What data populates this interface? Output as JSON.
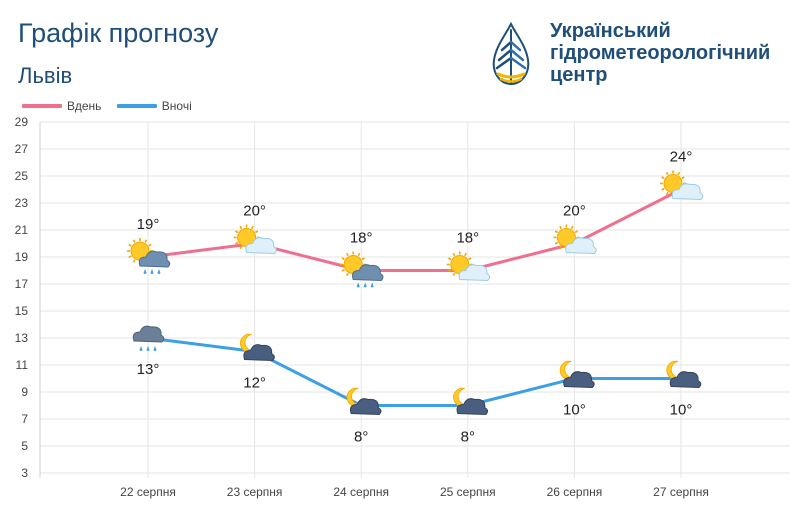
{
  "header": {
    "title": "Графік прогнозу",
    "city": "Львів",
    "org_name": "Український\nгідрометеорологічний\nцентр"
  },
  "colors": {
    "day": "#ef6f8e",
    "night": "#3ea0e4",
    "brand": "#1f4e79",
    "grid": "#e6e6e6"
  },
  "chart_data": {
    "type": "line",
    "categories": [
      "22 серпня",
      "23 серпня",
      "24 серпня",
      "25 серпня",
      "26 серпня",
      "27 серпня"
    ],
    "series": [
      {
        "name": "Вдень",
        "values": [
          19,
          20,
          18,
          18,
          20,
          24
        ],
        "labels": [
          "19°",
          "20°",
          "18°",
          "18°",
          "20°",
          "24°"
        ],
        "icons": [
          "sun-cloud-rain-icon",
          "sun-cloud-icon",
          "sun-cloud-rain-icon",
          "sun-cloud-icon",
          "sun-cloud-icon",
          "sun-cloud-icon"
        ]
      },
      {
        "name": "Вночі",
        "values": [
          13,
          12,
          8,
          8,
          10,
          10
        ],
        "labels": [
          "13°",
          "12°",
          "8°",
          "8°",
          "10°",
          "10°"
        ],
        "icons": [
          "cloud-rain-icon",
          "moon-cloud-icon",
          "moon-cloud-icon",
          "moon-cloud-icon",
          "moon-cloud-icon",
          "moon-cloud-icon"
        ]
      }
    ],
    "y_ticks": [
      3,
      5,
      7,
      9,
      11,
      13,
      15,
      17,
      19,
      21,
      23,
      25,
      27,
      29
    ],
    "ylim": [
      3,
      29
    ],
    "grid": true,
    "legend": "top-left"
  }
}
